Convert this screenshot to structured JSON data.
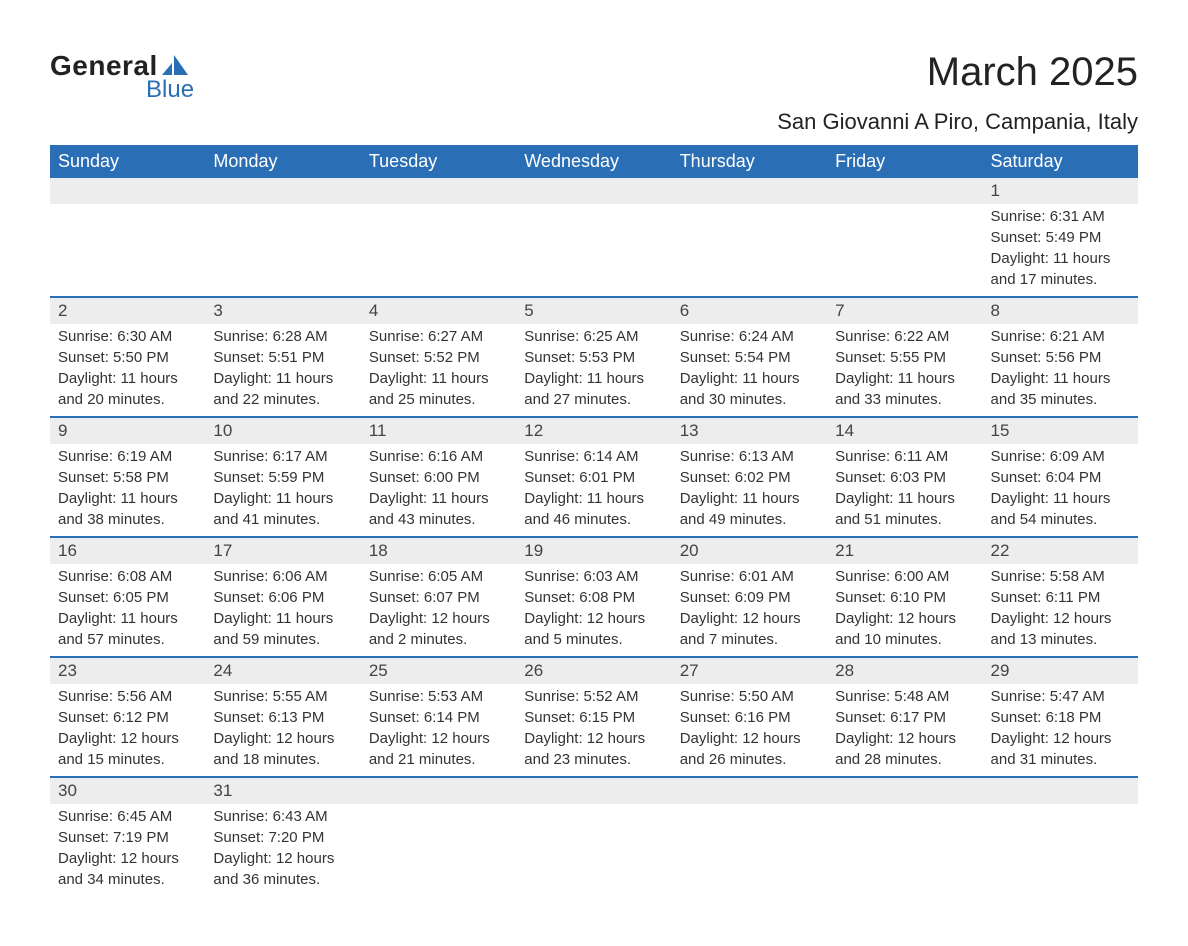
{
  "logo": {
    "word1": "General",
    "word2": "Blue"
  },
  "title": "March 2025",
  "location": "San Giovanni A Piro, Campania, Italy",
  "colors": {
    "header_bg": "#2a6fb5",
    "header_text": "#ffffff",
    "daynum_bg": "#ededed",
    "border": "#2a6fb5",
    "text": "#333333",
    "logo_blue": "#2a6fb5"
  },
  "day_names": [
    "Sunday",
    "Monday",
    "Tuesday",
    "Wednesday",
    "Thursday",
    "Friday",
    "Saturday"
  ],
  "weeks": [
    [
      {
        "day": "",
        "lines": []
      },
      {
        "day": "",
        "lines": []
      },
      {
        "day": "",
        "lines": []
      },
      {
        "day": "",
        "lines": []
      },
      {
        "day": "",
        "lines": []
      },
      {
        "day": "",
        "lines": []
      },
      {
        "day": "1",
        "lines": [
          "Sunrise: 6:31 AM",
          "Sunset: 5:49 PM",
          "Daylight: 11 hours",
          "and 17 minutes."
        ]
      }
    ],
    [
      {
        "day": "2",
        "lines": [
          "Sunrise: 6:30 AM",
          "Sunset: 5:50 PM",
          "Daylight: 11 hours",
          "and 20 minutes."
        ]
      },
      {
        "day": "3",
        "lines": [
          "Sunrise: 6:28 AM",
          "Sunset: 5:51 PM",
          "Daylight: 11 hours",
          "and 22 minutes."
        ]
      },
      {
        "day": "4",
        "lines": [
          "Sunrise: 6:27 AM",
          "Sunset: 5:52 PM",
          "Daylight: 11 hours",
          "and 25 minutes."
        ]
      },
      {
        "day": "5",
        "lines": [
          "Sunrise: 6:25 AM",
          "Sunset: 5:53 PM",
          "Daylight: 11 hours",
          "and 27 minutes."
        ]
      },
      {
        "day": "6",
        "lines": [
          "Sunrise: 6:24 AM",
          "Sunset: 5:54 PM",
          "Daylight: 11 hours",
          "and 30 minutes."
        ]
      },
      {
        "day": "7",
        "lines": [
          "Sunrise: 6:22 AM",
          "Sunset: 5:55 PM",
          "Daylight: 11 hours",
          "and 33 minutes."
        ]
      },
      {
        "day": "8",
        "lines": [
          "Sunrise: 6:21 AM",
          "Sunset: 5:56 PM",
          "Daylight: 11 hours",
          "and 35 minutes."
        ]
      }
    ],
    [
      {
        "day": "9",
        "lines": [
          "Sunrise: 6:19 AM",
          "Sunset: 5:58 PM",
          "Daylight: 11 hours",
          "and 38 minutes."
        ]
      },
      {
        "day": "10",
        "lines": [
          "Sunrise: 6:17 AM",
          "Sunset: 5:59 PM",
          "Daylight: 11 hours",
          "and 41 minutes."
        ]
      },
      {
        "day": "11",
        "lines": [
          "Sunrise: 6:16 AM",
          "Sunset: 6:00 PM",
          "Daylight: 11 hours",
          "and 43 minutes."
        ]
      },
      {
        "day": "12",
        "lines": [
          "Sunrise: 6:14 AM",
          "Sunset: 6:01 PM",
          "Daylight: 11 hours",
          "and 46 minutes."
        ]
      },
      {
        "day": "13",
        "lines": [
          "Sunrise: 6:13 AM",
          "Sunset: 6:02 PM",
          "Daylight: 11 hours",
          "and 49 minutes."
        ]
      },
      {
        "day": "14",
        "lines": [
          "Sunrise: 6:11 AM",
          "Sunset: 6:03 PM",
          "Daylight: 11 hours",
          "and 51 minutes."
        ]
      },
      {
        "day": "15",
        "lines": [
          "Sunrise: 6:09 AM",
          "Sunset: 6:04 PM",
          "Daylight: 11 hours",
          "and 54 minutes."
        ]
      }
    ],
    [
      {
        "day": "16",
        "lines": [
          "Sunrise: 6:08 AM",
          "Sunset: 6:05 PM",
          "Daylight: 11 hours",
          "and 57 minutes."
        ]
      },
      {
        "day": "17",
        "lines": [
          "Sunrise: 6:06 AM",
          "Sunset: 6:06 PM",
          "Daylight: 11 hours",
          "and 59 minutes."
        ]
      },
      {
        "day": "18",
        "lines": [
          "Sunrise: 6:05 AM",
          "Sunset: 6:07 PM",
          "Daylight: 12 hours",
          "and 2 minutes."
        ]
      },
      {
        "day": "19",
        "lines": [
          "Sunrise: 6:03 AM",
          "Sunset: 6:08 PM",
          "Daylight: 12 hours",
          "and 5 minutes."
        ]
      },
      {
        "day": "20",
        "lines": [
          "Sunrise: 6:01 AM",
          "Sunset: 6:09 PM",
          "Daylight: 12 hours",
          "and 7 minutes."
        ]
      },
      {
        "day": "21",
        "lines": [
          "Sunrise: 6:00 AM",
          "Sunset: 6:10 PM",
          "Daylight: 12 hours",
          "and 10 minutes."
        ]
      },
      {
        "day": "22",
        "lines": [
          "Sunrise: 5:58 AM",
          "Sunset: 6:11 PM",
          "Daylight: 12 hours",
          "and 13 minutes."
        ]
      }
    ],
    [
      {
        "day": "23",
        "lines": [
          "Sunrise: 5:56 AM",
          "Sunset: 6:12 PM",
          "Daylight: 12 hours",
          "and 15 minutes."
        ]
      },
      {
        "day": "24",
        "lines": [
          "Sunrise: 5:55 AM",
          "Sunset: 6:13 PM",
          "Daylight: 12 hours",
          "and 18 minutes."
        ]
      },
      {
        "day": "25",
        "lines": [
          "Sunrise: 5:53 AM",
          "Sunset: 6:14 PM",
          "Daylight: 12 hours",
          "and 21 minutes."
        ]
      },
      {
        "day": "26",
        "lines": [
          "Sunrise: 5:52 AM",
          "Sunset: 6:15 PM",
          "Daylight: 12 hours",
          "and 23 minutes."
        ]
      },
      {
        "day": "27",
        "lines": [
          "Sunrise: 5:50 AM",
          "Sunset: 6:16 PM",
          "Daylight: 12 hours",
          "and 26 minutes."
        ]
      },
      {
        "day": "28",
        "lines": [
          "Sunrise: 5:48 AM",
          "Sunset: 6:17 PM",
          "Daylight: 12 hours",
          "and 28 minutes."
        ]
      },
      {
        "day": "29",
        "lines": [
          "Sunrise: 5:47 AM",
          "Sunset: 6:18 PM",
          "Daylight: 12 hours",
          "and 31 minutes."
        ]
      }
    ],
    [
      {
        "day": "30",
        "lines": [
          "Sunrise: 6:45 AM",
          "Sunset: 7:19 PM",
          "Daylight: 12 hours",
          "and 34 minutes."
        ]
      },
      {
        "day": "31",
        "lines": [
          "Sunrise: 6:43 AM",
          "Sunset: 7:20 PM",
          "Daylight: 12 hours",
          "and 36 minutes."
        ]
      },
      {
        "day": "",
        "lines": []
      },
      {
        "day": "",
        "lines": []
      },
      {
        "day": "",
        "lines": []
      },
      {
        "day": "",
        "lines": []
      },
      {
        "day": "",
        "lines": []
      }
    ]
  ]
}
